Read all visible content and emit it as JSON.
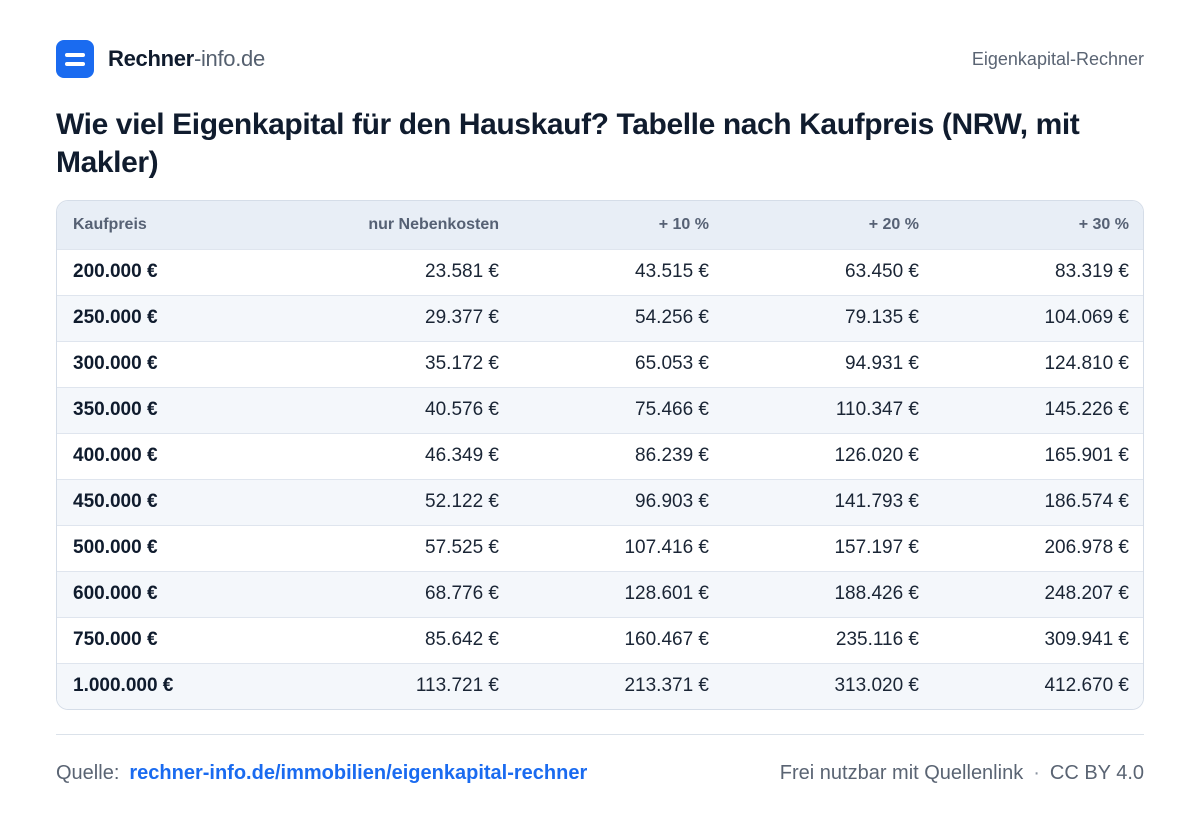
{
  "brand": {
    "name_strong": "Rechner",
    "name_light": "-info.de"
  },
  "header": {
    "right_label": "Eigenkapital-Rechner"
  },
  "title": "Wie viel Eigenkapital für den Hauskauf? Tabelle nach Kaufpreis (NRW, mit Makler)",
  "table": {
    "columns": [
      "Kaufpreis",
      "nur Nebenkosten",
      "+ 10 %",
      "+ 20 %",
      "+ 30 %"
    ],
    "rows": [
      [
        "200.000 €",
        "23.581 €",
        "43.515 €",
        "63.450 €",
        "83.319 €"
      ],
      [
        "250.000 €",
        "29.377 €",
        "54.256 €",
        "79.135 €",
        "104.069 €"
      ],
      [
        "300.000 €",
        "35.172 €",
        "65.053 €",
        "94.931 €",
        "124.810 €"
      ],
      [
        "350.000 €",
        "40.576 €",
        "75.466 €",
        "110.347 €",
        "145.226 €"
      ],
      [
        "400.000 €",
        "46.349 €",
        "86.239 €",
        "126.020 €",
        "165.901 €"
      ],
      [
        "450.000 €",
        "52.122 €",
        "96.903 €",
        "141.793 €",
        "186.574 €"
      ],
      [
        "500.000 €",
        "57.525 €",
        "107.416 €",
        "157.197 €",
        "206.978 €"
      ],
      [
        "600.000 €",
        "68.776 €",
        "128.601 €",
        "188.426 €",
        "248.207 €"
      ],
      [
        "750.000 €",
        "85.642 €",
        "160.467 €",
        "235.116 €",
        "309.941 €"
      ],
      [
        "1.000.000 €",
        "113.721 €",
        "213.371 €",
        "313.020 €",
        "412.670 €"
      ]
    ]
  },
  "footer": {
    "source_label": "Quelle:",
    "source_link": "rechner-info.de/immobilien/eigenkapital-rechner",
    "license_text": "Frei nutzbar mit Quellenlink",
    "separator": "·",
    "license": "CC BY 4.0"
  },
  "colors": {
    "accent": "#1a6bf0",
    "header_row": "#e8eef6",
    "stripe": "#f4f7fb"
  },
  "icons": {
    "logo": "logo-icon"
  }
}
